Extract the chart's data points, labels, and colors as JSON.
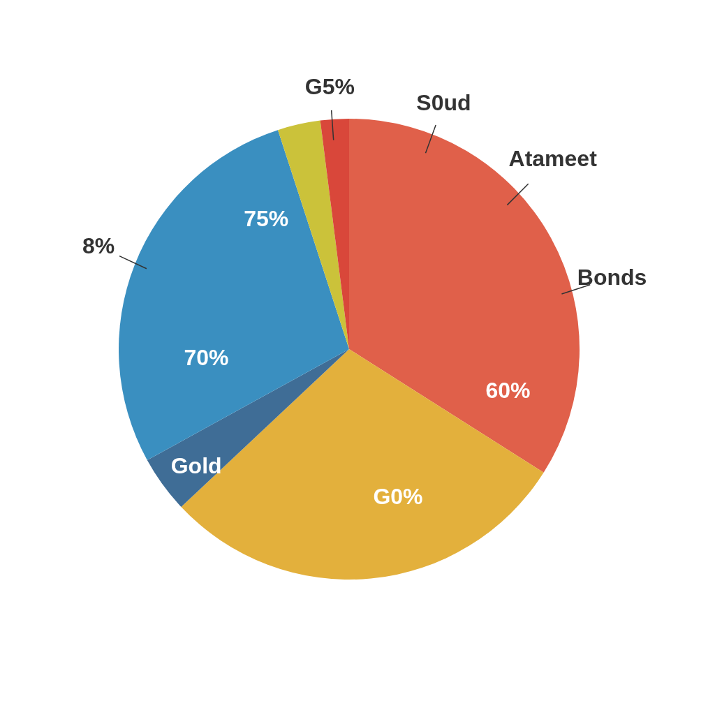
{
  "chart_data": {
    "type": "pie",
    "categories": [
      null,
      null,
      null,
      null,
      null,
      null
    ],
    "values": [
      34,
      29,
      4,
      28,
      3,
      2
    ],
    "colors": [
      "#e0604a",
      "#e3b03c",
      "#3f6d96",
      "#3a8fc0",
      "#cbc23a",
      "#d9473a"
    ],
    "annotations": [
      "G5%",
      "S0ud",
      "Atameet",
      "Bonds",
      "8%",
      "75%",
      "70%",
      "Gold",
      "60%",
      "G0%"
    ]
  }
}
